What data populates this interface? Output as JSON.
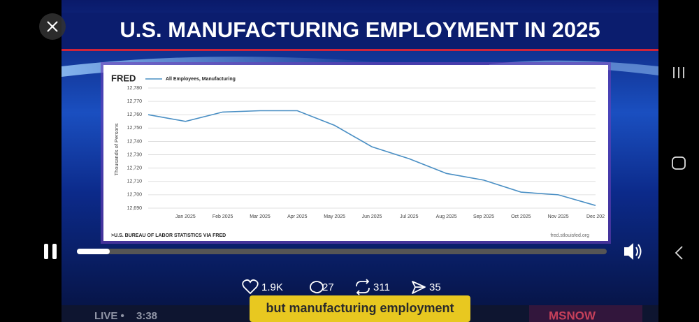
{
  "header": {
    "title": "U.S. MANUFACTURING EMPLOYMENT IN 2025"
  },
  "chart_data": {
    "type": "line",
    "logo": "FRED",
    "y_label": "Thousands of Persons",
    "categories": [
      null,
      "Jan 2025",
      "Feb 2025",
      "Mar 2025",
      "Apr 2025",
      "May 2025",
      "Jun 2025",
      "Jul 2025",
      "Aug 2025",
      "Sep 2025",
      "Oct 2025",
      "Nov 2025",
      "Dec 202"
    ],
    "series": [
      {
        "name": "All Employees, Manufacturing",
        "color": "#4a8fc4",
        "values": [
          12760,
          12755,
          12762,
          12763,
          12763,
          12752,
          12736,
          12727,
          12716,
          12711,
          12702,
          12700,
          12692
        ]
      }
    ],
    "ylim": [
      12690,
      12780
    ],
    "yticks": [
      {
        "value": 12690,
        "label": "12,690"
      },
      {
        "value": 12700,
        "label": "12,700"
      },
      {
        "value": 12710,
        "label": "12,710"
      },
      {
        "value": 12720,
        "label": "12,720"
      },
      {
        "value": 12730,
        "label": "12,730"
      },
      {
        "value": 12740,
        "label": "12,740"
      },
      {
        "value": 12750,
        "label": "12,750"
      },
      {
        "value": 12760,
        "label": "12,760"
      },
      {
        "value": 12770,
        "label": "12,770"
      },
      {
        "value": 12780,
        "label": "12,780"
      }
    ],
    "grid": true,
    "source": ">U.S. BUREAU OF LABOR STATISTICS VIA FRED",
    "site": "fred.stlouisfed.org"
  },
  "engagement": {
    "likes": "1.9K",
    "comments": "27",
    "reposts": "311",
    "shares": "35"
  },
  "caption": "but manufacturing employment",
  "ticker": {
    "live": "LIVE •",
    "time": "3:38",
    "network": "MSNOW"
  }
}
